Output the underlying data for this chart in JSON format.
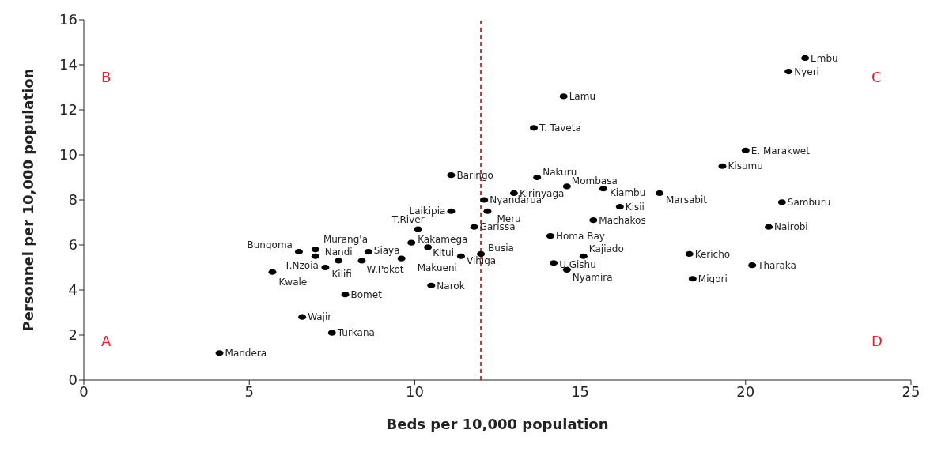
{
  "chart_data": {
    "type": "scatter",
    "xlabel": "Beds per 10,000 population",
    "ylabel": "Personnel per 10,000 population",
    "xlim": [
      0,
      25
    ],
    "xticks": [
      0,
      5,
      10,
      15,
      20,
      25
    ],
    "ylim": [
      0,
      16
    ],
    "yticks": [
      0,
      2,
      4,
      6,
      8,
      10,
      12,
      14,
      16
    ],
    "grid": false,
    "legend": false,
    "marker": "circle",
    "series": [
      {
        "color": "#000000",
        "x": [
          4.1,
          6.6,
          7.5,
          7.9,
          5.7,
          6.5,
          7.0,
          7.0,
          7.7,
          7.3,
          8.6,
          8.4,
          9.6,
          9.9,
          10.4,
          10.1,
          10.5,
          11.1,
          12.2,
          11.8,
          11.4,
          12.0,
          14.5,
          13.6,
          11.1,
          13.7,
          14.6,
          15.7,
          13.0,
          17.4,
          12.1,
          16.2,
          15.4,
          14.1,
          15.1,
          14.2,
          14.6,
          18.3,
          18.4,
          21.8,
          21.3,
          20.0,
          19.3,
          21.1,
          20.7,
          20.2
        ],
        "values": [
          1.2,
          2.8,
          2.1,
          3.8,
          4.8,
          5.7,
          5.8,
          5.5,
          5.3,
          5.0,
          5.7,
          5.3,
          5.4,
          6.1,
          5.9,
          6.7,
          4.2,
          7.5,
          7.5,
          6.8,
          5.5,
          5.6,
          12.6,
          11.2,
          9.1,
          9.0,
          8.6,
          8.5,
          8.3,
          8.3,
          8.0,
          7.7,
          7.1,
          6.4,
          5.5,
          5.2,
          4.9,
          5.6,
          4.5,
          14.3,
          13.7,
          10.2,
          9.5,
          7.9,
          6.8,
          5.1
        ]
      }
    ],
    "ref_lines": [
      {
        "axis": "x",
        "value": 12,
        "color": "#e8202a",
        "line_style": "dashed"
      }
    ],
    "annotations": [
      "A",
      "B",
      "C",
      "D",
      {
        "text": "Mandera",
        "x": 4.1,
        "y": 1.2
      },
      {
        "text": "Wajir",
        "x": 6.6,
        "y": 2.8
      },
      {
        "text": "Turkana",
        "x": 7.5,
        "y": 2.1
      },
      {
        "text": "Bomet",
        "x": 7.9,
        "y": 3.8
      },
      {
        "text": "Kwale",
        "x": 5.7,
        "y": 4.8
      },
      {
        "text": "Bungoma",
        "x": 6.5,
        "y": 5.7
      },
      {
        "text": "Murang'a",
        "x": 7.0,
        "y": 5.8
      },
      {
        "text": "T.Nzoia",
        "x": 7.0,
        "y": 5.5
      },
      {
        "text": "Nandi",
        "x": 7.7,
        "y": 5.3
      },
      {
        "text": "Kilifi",
        "x": 7.3,
        "y": 5.0
      },
      {
        "text": "Siaya",
        "x": 8.6,
        "y": 5.7
      },
      {
        "text": "W.Pokot",
        "x": 8.4,
        "y": 5.3
      },
      {
        "text": "Makueni",
        "x": 9.6,
        "y": 5.4
      },
      {
        "text": "Kakamega",
        "x": 9.9,
        "y": 6.1
      },
      {
        "text": "Kitui",
        "x": 10.4,
        "y": 5.9
      },
      {
        "text": "T.River",
        "x": 10.1,
        "y": 6.7
      },
      {
        "text": "Narok",
        "x": 10.5,
        "y": 4.2
      },
      {
        "text": "Laikipia",
        "x": 11.1,
        "y": 7.5
      },
      {
        "text": "Meru",
        "x": 12.2,
        "y": 7.5
      },
      {
        "text": "Garissa",
        "x": 11.8,
        "y": 6.8
      },
      {
        "text": "Vihiga",
        "x": 11.4,
        "y": 5.5
      },
      {
        "text": "Busia",
        "x": 12.0,
        "y": 5.6
      },
      {
        "text": "Lamu",
        "x": 14.5,
        "y": 12.6
      },
      {
        "text": "T. Taveta",
        "x": 13.6,
        "y": 11.2
      },
      {
        "text": "Baringo",
        "x": 11.1,
        "y": 9.1
      },
      {
        "text": "Nakuru",
        "x": 13.7,
        "y": 9.0
      },
      {
        "text": "Mombasa",
        "x": 14.6,
        "y": 8.6
      },
      {
        "text": "Kiambu",
        "x": 15.7,
        "y": 8.5
      },
      {
        "text": "Kirinyaga",
        "x": 13.0,
        "y": 8.3
      },
      {
        "text": "Marsabit",
        "x": 17.4,
        "y": 8.3
      },
      {
        "text": "Nyandarua",
        "x": 12.1,
        "y": 8.0
      },
      {
        "text": "Kisii",
        "x": 16.2,
        "y": 7.7
      },
      {
        "text": "Machakos",
        "x": 15.4,
        "y": 7.1
      },
      {
        "text": "Homa Bay",
        "x": 14.1,
        "y": 6.4
      },
      {
        "text": "Kajiado",
        "x": 15.1,
        "y": 5.5
      },
      {
        "text": "U.Gishu",
        "x": 14.2,
        "y": 5.2
      },
      {
        "text": "Nyamira",
        "x": 14.6,
        "y": 4.9
      },
      {
        "text": "Kericho",
        "x": 18.3,
        "y": 5.6
      },
      {
        "text": "Migori",
        "x": 18.4,
        "y": 4.5
      },
      {
        "text": "Embu",
        "x": 21.8,
        "y": 14.3
      },
      {
        "text": "Nyeri",
        "x": 21.3,
        "y": 13.7
      },
      {
        "text": "E. Marakwet",
        "x": 20.0,
        "y": 10.2
      },
      {
        "text": "Kisumu",
        "x": 19.3,
        "y": 9.5
      },
      {
        "text": "Samburu",
        "x": 21.1,
        "y": 7.9
      },
      {
        "text": "Nairobi",
        "x": 20.7,
        "y": 6.8
      },
      {
        "text": "Tharaka",
        "x": 20.2,
        "y": 5.1
      }
    ]
  }
}
